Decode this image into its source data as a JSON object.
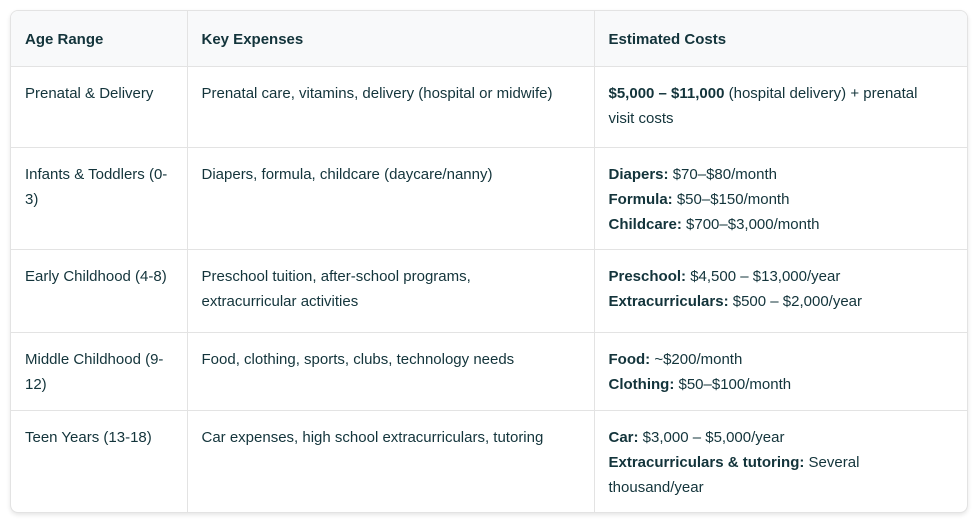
{
  "colors": {
    "text": "#13343b",
    "border": "#e3e3e3",
    "header_background": "#f8f9fa",
    "body_background": "#ffffff"
  },
  "table": {
    "columns": [
      {
        "label": "Age Range"
      },
      {
        "label": "Key Expenses"
      },
      {
        "label": "Estimated Costs"
      }
    ],
    "rows": [
      {
        "age_range": "Prenatal & Delivery",
        "key_expenses": "Prenatal care, vitamins, delivery (hospital or midwife)",
        "estimated_costs": [
          {
            "bold": "$5,000 – $11,000",
            "rest": " (hospital delivery) + prenatal visit costs"
          }
        ]
      },
      {
        "age_range": "Infants & Toddlers (0-3)",
        "key_expenses": "Diapers, formula, childcare (daycare/nanny)",
        "estimated_costs": [
          {
            "bold": "Diapers:",
            "rest": " $70–$80/month"
          },
          {
            "bold": "Formula:",
            "rest": " $50–$150/month"
          },
          {
            "bold": "Childcare:",
            "rest": " $700–$3,000/month"
          }
        ]
      },
      {
        "age_range": "Early Childhood (4-8)",
        "key_expenses": "Preschool tuition, after-school programs, extracurricular activities",
        "estimated_costs": [
          {
            "bold": "Preschool:",
            "rest": " $4,500 – $13,000/year"
          },
          {
            "bold": "Extracurriculars:",
            "rest": " $500 – $2,000/year"
          }
        ]
      },
      {
        "age_range": "Middle Childhood (9-12)",
        "key_expenses": "Food, clothing, sports, clubs, technology needs",
        "estimated_costs": [
          {
            "bold": "Food:",
            "rest": " ~$200/month"
          },
          {
            "bold": "Clothing:",
            "rest": " $50–$100/month"
          }
        ]
      },
      {
        "age_range": "Teen Years (13-18)",
        "key_expenses": "Car expenses, high school extracurriculars, tutoring",
        "estimated_costs": [
          {
            "bold": "Car:",
            "rest": " $3,000 – $5,000/year"
          },
          {
            "bold": "Extracurriculars & tutoring:",
            "rest": " Several thousand/year"
          }
        ]
      }
    ]
  }
}
